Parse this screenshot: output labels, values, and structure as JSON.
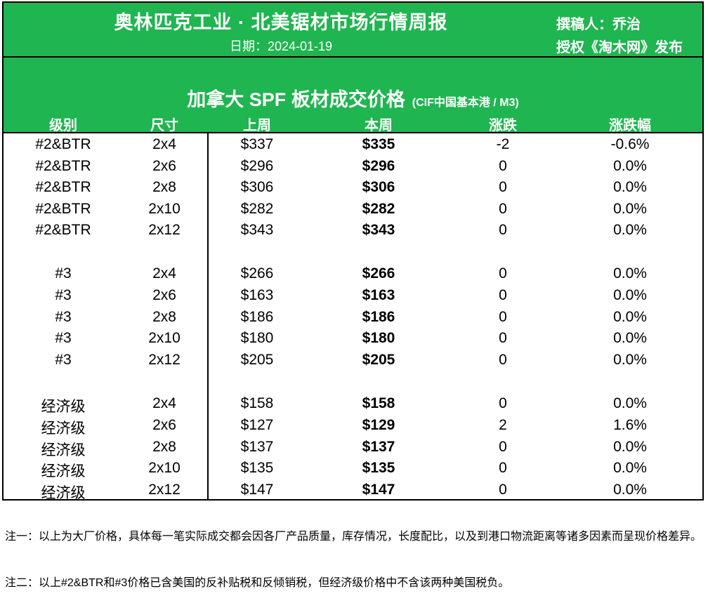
{
  "header": {
    "title": "奥林匹克工业 · 北美锯材市场行情周报",
    "date": "日期：2024-01-19",
    "author": "撰稿人：乔治",
    "license": "授权《淘木网》发布"
  },
  "table": {
    "title": "加拿大 SPF 板材成交价格",
    "unit": "(CIF中国基本港 / M3)",
    "columns": [
      "级别",
      "尺寸",
      "上周",
      "本周",
      "涨跌",
      "涨跌幅"
    ],
    "rows": [
      [
        "#2&BTR",
        "2x4",
        "$337",
        "$335",
        "-2",
        "-0.6%"
      ],
      [
        "#2&BTR",
        "2x6",
        "$296",
        "$296",
        "0",
        "0.0%"
      ],
      [
        "#2&BTR",
        "2x8",
        "$306",
        "$306",
        "0",
        "0.0%"
      ],
      [
        "#2&BTR",
        "2x10",
        "$282",
        "$282",
        "0",
        "0.0%"
      ],
      [
        "#2&BTR",
        "2x12",
        "$343",
        "$343",
        "0",
        "0.0%"
      ],
      [
        "#3",
        "2x4",
        "$266",
        "$266",
        "0",
        "0.0%"
      ],
      [
        "#3",
        "2x6",
        "$163",
        "$163",
        "0",
        "0.0%"
      ],
      [
        "#3",
        "2x8",
        "$186",
        "$186",
        "0",
        "0.0%"
      ],
      [
        "#3",
        "2x10",
        "$180",
        "$180",
        "0",
        "0.0%"
      ],
      [
        "#3",
        "2x12",
        "$205",
        "$205",
        "0",
        "0.0%"
      ],
      [
        "经济级",
        "2x4",
        "$158",
        "$158",
        "0",
        "0.0%"
      ],
      [
        "经济级",
        "2x6",
        "$127",
        "$129",
        "2",
        "1.6%"
      ],
      [
        "经济级",
        "2x8",
        "$137",
        "$137",
        "0",
        "0.0%"
      ],
      [
        "经济级",
        "2x10",
        "$135",
        "$135",
        "0",
        "0.0%"
      ],
      [
        "经济级",
        "2x12",
        "$147",
        "$147",
        "0",
        "0.0%"
      ]
    ]
  },
  "notes": [
    "注一：以上为大厂价格，具体每一笔实际成交都会因各厂产品质量，库存情况，长度配比，以及到港口物流距离等诸多因素而呈现价格差异。",
    "注二：以上#2&BTR和#3价格已含美国的反补贴税和反倾销税，但经济级价格中不含该两种美国税负。"
  ]
}
